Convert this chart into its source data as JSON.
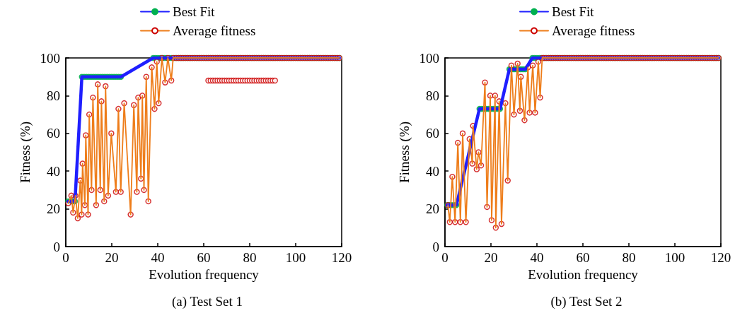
{
  "chart_data": [
    {
      "type": "line",
      "title": "(a) Test Set 1",
      "xlabel": "Evolution frequency",
      "ylabel": "Fitness (%)",
      "xlim": [
        0,
        120
      ],
      "xticks": [
        0,
        20,
        40,
        60,
        80,
        100,
        120
      ],
      "ylim": [
        0,
        100
      ],
      "yticks": [
        0,
        20,
        40,
        60,
        80,
        100
      ],
      "grid": false,
      "legend": "top",
      "marker": "circle",
      "line_style": "solid",
      "series": [
        {
          "name": "Best Fit",
          "color": "#1f1fff",
          "x": [
            1,
            2,
            3,
            4,
            7,
            8,
            9,
            10,
            11,
            12,
            13,
            14,
            15,
            16,
            17,
            18,
            19,
            20,
            21,
            22,
            23,
            24,
            38,
            39,
            40,
            41,
            42,
            43,
            44,
            45,
            46,
            47,
            48,
            49,
            50,
            51,
            52,
            53,
            54,
            55,
            56,
            57,
            58,
            59,
            60,
            61,
            62,
            63,
            64,
            65,
            66,
            67,
            68,
            69,
            70,
            71,
            72,
            73,
            74,
            75,
            76,
            77,
            78,
            79,
            80,
            81,
            82,
            83,
            84,
            85,
            86,
            87,
            88,
            89,
            90,
            91,
            92,
            93,
            94,
            95,
            96,
            97,
            98,
            99,
            100,
            101,
            102,
            103,
            104,
            105,
            106,
            107,
            108,
            109,
            110,
            111,
            112,
            113,
            114,
            115,
            116,
            117,
            118,
            119
          ],
          "values": [
            24,
            24,
            24,
            24,
            90,
            90,
            90,
            90,
            90,
            90,
            90,
            90,
            90,
            90,
            90,
            90,
            90,
            90,
            90,
            90,
            90,
            90,
            100,
            100,
            100,
            100,
            100,
            100,
            100,
            100,
            100,
            100,
            100,
            100,
            100,
            100,
            100,
            100,
            100,
            100,
            100,
            100,
            100,
            100,
            100,
            100,
            100,
            100,
            100,
            100,
            100,
            100,
            100,
            100,
            100,
            100,
            100,
            100,
            100,
            100,
            100,
            100,
            100,
            100,
            100,
            100,
            100,
            100,
            100,
            100,
            100,
            100,
            100,
            100,
            100,
            100,
            100,
            100,
            100,
            100,
            100,
            100,
            100,
            100,
            100,
            100,
            100,
            100,
            100,
            100,
            100,
            100,
            100,
            100,
            100,
            100,
            100,
            100,
            100,
            100,
            100,
            100,
            100,
            100
          ]
        },
        {
          "name": "Average fitness",
          "color": "#ee7d1a",
          "x": [
            1.1,
            2.4,
            3.2,
            4.2,
            5.2,
            6.3,
            6.9,
            7.3,
            8.3,
            8.7,
            9.7,
            10.2,
            11.2,
            11.8,
            13.2,
            13.9,
            15,
            15.5,
            16.7,
            17.3,
            18.4,
            19.8,
            21.8,
            22.9,
            23.9,
            25.4,
            28.2,
            29.6,
            30.9,
            31.5,
            32.7,
            33.3,
            34,
            35,
            35.9,
            37.4,
            38.6,
            39.6,
            40.4,
            41.8,
            43.2,
            44.4,
            45.9,
            46.7,
            48,
            49,
            50,
            51,
            52,
            53,
            54,
            55,
            56,
            57,
            58,
            59,
            60,
            61,
            62,
            63,
            64,
            65,
            66,
            67,
            68,
            69,
            70,
            71,
            72,
            73,
            74,
            75,
            76,
            77,
            78,
            79,
            80,
            81,
            82,
            83,
            84,
            85,
            86,
            87,
            88,
            89,
            90,
            91,
            92,
            93,
            94,
            95,
            96,
            97,
            98,
            99,
            100,
            101,
            102,
            103,
            104,
            105,
            106,
            107,
            108,
            109,
            110,
            111,
            112,
            113,
            114,
            115,
            116,
            117,
            118,
            119
          ],
          "values": [
            23,
            27,
            18,
            27,
            15,
            35,
            17,
            44,
            22,
            59,
            17,
            70,
            30,
            79,
            22,
            86,
            30,
            77,
            24,
            85,
            27,
            60,
            29,
            73,
            29,
            76,
            17,
            75,
            29,
            79,
            36,
            80,
            30,
            90,
            24,
            95,
            73,
            98,
            76,
            100,
            87,
            100,
            88,
            100,
            100,
            100,
            100,
            100,
            100,
            100,
            100,
            100,
            100,
            100,
            100,
            100,
            100,
            100,
            100,
            100,
            100,
            100,
            100,
            100,
            100,
            100,
            100,
            100,
            100,
            100,
            100,
            100,
            100,
            100,
            100,
            100,
            100,
            100,
            100,
            100,
            100,
            100,
            100,
            100,
            100,
            100,
            100,
            100,
            100,
            100,
            100,
            100,
            100,
            100,
            100,
            100,
            100,
            100,
            100,
            100,
            100,
            100,
            100,
            100,
            100,
            100,
            100,
            100,
            100,
            100,
            100,
            100,
            100,
            100,
            100,
            100
          ]
        },
        {
          "type": "scatter",
          "color": "#cc0000",
          "x": [
            62,
            63,
            64,
            65,
            66,
            67,
            68,
            69,
            70,
            71,
            72,
            73,
            74,
            75,
            76,
            77,
            78,
            79,
            80,
            81,
            82,
            83,
            84,
            85,
            86,
            87,
            88,
            89,
            90,
            91
          ],
          "values": [
            88,
            88,
            88,
            88,
            88,
            88,
            88,
            88,
            88,
            88,
            88,
            88,
            88,
            88,
            88,
            88,
            88,
            88,
            88,
            88,
            88,
            88,
            88,
            88,
            88,
            88,
            88,
            88,
            88,
            88
          ]
        }
      ]
    },
    {
      "type": "line",
      "title": "(b) Test Set 2",
      "xlabel": "Evolution frequency",
      "ylabel": "Fitness (%)",
      "xlim": [
        0,
        120
      ],
      "xticks": [
        0,
        20,
        40,
        60,
        80,
        100,
        120
      ],
      "ylim": [
        0,
        100
      ],
      "yticks": [
        0,
        20,
        40,
        60,
        80,
        100
      ],
      "grid": false,
      "legend": "top",
      "marker": "circle",
      "line_style": "solid",
      "series": [
        {
          "name": "Best Fit",
          "color": "#1f1fff",
          "x": [
            1,
            2,
            3,
            4,
            5,
            15,
            16,
            17,
            18,
            19,
            20,
            21,
            22,
            23,
            24,
            28,
            29,
            30,
            31,
            32,
            33,
            34,
            35,
            38,
            39,
            40,
            41,
            42,
            43,
            44,
            45,
            46,
            47,
            48,
            49,
            50,
            51,
            52,
            53,
            54,
            55,
            56,
            57,
            58,
            59,
            60,
            61,
            62,
            63,
            64,
            65,
            66,
            67,
            68,
            69,
            70,
            71,
            72,
            73,
            74,
            75,
            76,
            77,
            78,
            79,
            80,
            81,
            82,
            83,
            84,
            85,
            86,
            87,
            88,
            89,
            90,
            91,
            92,
            93,
            94,
            95,
            96,
            97,
            98,
            99,
            100,
            101,
            102,
            103,
            104,
            105,
            106,
            107,
            108,
            109,
            110,
            111,
            112,
            113,
            114,
            115,
            116,
            117,
            118,
            119
          ],
          "values": [
            22,
            22,
            22,
            22,
            22,
            73,
            73,
            73,
            73,
            73,
            73,
            73,
            73,
            73,
            73,
            94,
            94,
            94,
            94,
            94,
            94,
            94,
            94,
            100,
            100,
            100,
            100,
            100,
            100,
            100,
            100,
            100,
            100,
            100,
            100,
            100,
            100,
            100,
            100,
            100,
            100,
            100,
            100,
            100,
            100,
            100,
            100,
            100,
            100,
            100,
            100,
            100,
            100,
            100,
            100,
            100,
            100,
            100,
            100,
            100,
            100,
            100,
            100,
            100,
            100,
            100,
            100,
            100,
            100,
            100,
            100,
            100,
            100,
            100,
            100,
            100,
            100,
            100,
            100,
            100,
            100,
            100,
            100,
            100,
            100,
            100,
            100,
            100,
            100,
            100,
            100,
            100,
            100,
            100,
            100,
            100,
            100,
            100,
            100,
            100,
            100,
            100,
            100,
            100,
            100
          ]
        },
        {
          "name": "Average fitness",
          "color": "#ee7d1a",
          "x": [
            1.3,
            2.1,
            3.2,
            4.4,
            5.6,
            6.7,
            7.7,
            9.1,
            10.7,
            11.9,
            12.2,
            13.8,
            14.6,
            15.7,
            17.4,
            18.3,
            19.7,
            20.3,
            21.8,
            22.1,
            23.6,
            24.6,
            26.3,
            27.3,
            28.9,
            30,
            31.6,
            32.6,
            33,
            34.6,
            36.1,
            36.8,
            38.2,
            39.2,
            40.6,
            41.4,
            42.3,
            43,
            44,
            45,
            46,
            47,
            48,
            49,
            50,
            51,
            52,
            53,
            54,
            55,
            56,
            57,
            58,
            59,
            60,
            61,
            62,
            63,
            64,
            65,
            66,
            67,
            68,
            69,
            70,
            71,
            72,
            73,
            74,
            75,
            76,
            77,
            78,
            79,
            80,
            81,
            82,
            83,
            84,
            85,
            86,
            87,
            88,
            89,
            90,
            91,
            92,
            93,
            94,
            95,
            96,
            97,
            98,
            99,
            100,
            101,
            102,
            103,
            104,
            105,
            106,
            107,
            108,
            109,
            110,
            111,
            112,
            113,
            114,
            115,
            116,
            117,
            118,
            119
          ],
          "values": [
            22,
            13,
            37,
            13,
            55,
            13,
            60,
            13,
            57,
            44,
            64,
            41,
            50,
            43,
            87,
            21,
            80,
            14,
            80,
            10,
            77,
            12,
            76,
            35,
            96,
            70,
            97,
            72,
            90,
            67,
            95,
            71,
            96,
            71,
            98,
            79,
            100,
            100,
            100,
            100,
            100,
            100,
            100,
            100,
            100,
            100,
            100,
            100,
            100,
            100,
            100,
            100,
            100,
            100,
            100,
            100,
            100,
            100,
            100,
            100,
            100,
            100,
            100,
            100,
            100,
            100,
            100,
            100,
            100,
            100,
            100,
            100,
            100,
            100,
            100,
            100,
            100,
            100,
            100,
            100,
            100,
            100,
            100,
            100,
            100,
            100,
            100,
            100,
            100,
            100,
            100,
            100,
            100,
            100,
            100,
            100,
            100,
            100,
            100,
            100,
            100,
            100,
            100,
            100,
            100,
            100,
            100,
            100,
            100,
            100,
            100,
            100,
            100,
            100
          ]
        }
      ]
    }
  ]
}
